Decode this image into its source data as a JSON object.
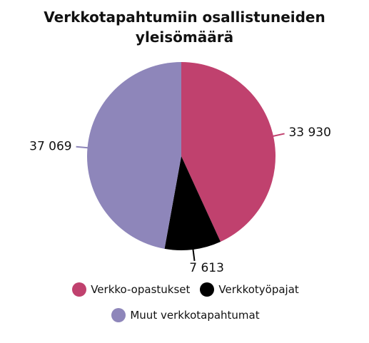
{
  "chart_data": {
    "type": "pie",
    "title": "Verkkotapahtumiin osallistuneiden yleisömäärä",
    "categories": [
      "Verkko-opastukset",
      "Verkkotyöpajat",
      "Muut verkkotapahtumat"
    ],
    "values": [
      33930,
      7613,
      37069
    ],
    "value_labels": [
      "33 930",
      "7 613",
      "37 069"
    ],
    "colors": [
      "#c0416e",
      "#000000",
      "#8e86ba"
    ],
    "legend": "bottom"
  }
}
